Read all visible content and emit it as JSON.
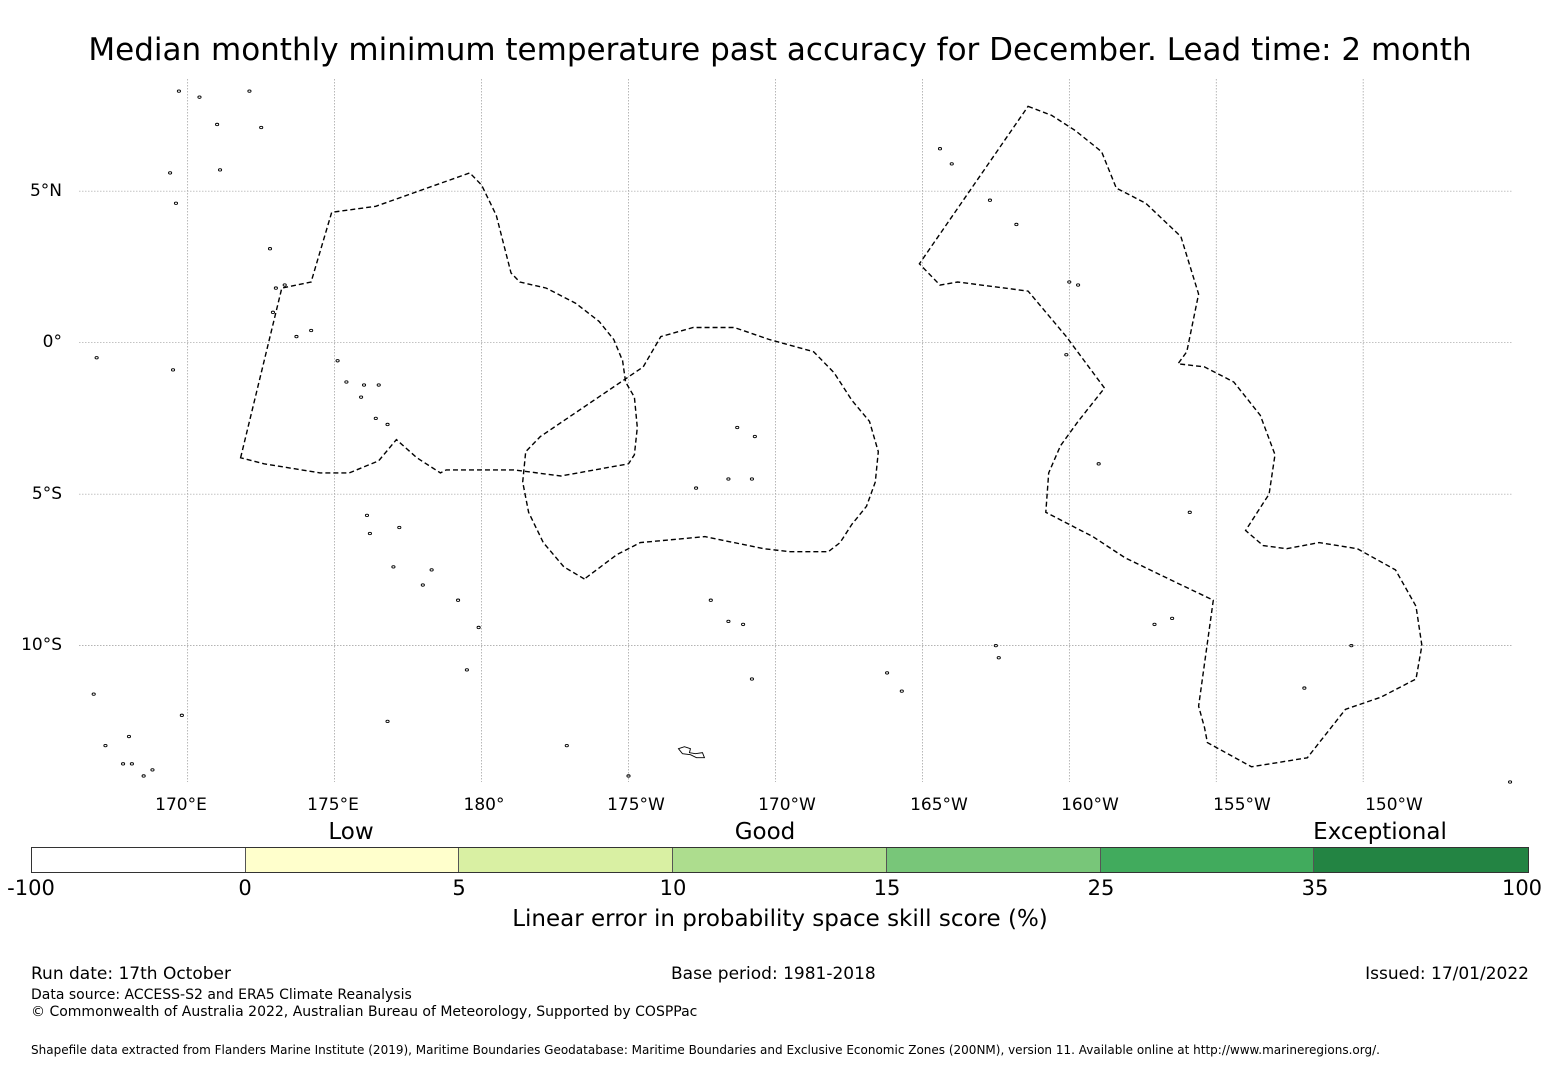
{
  "title": "Median monthly minimum temperature past accuracy for December. Lead time: 2 month",
  "map": {
    "lat_labels": [
      "5°N",
      "0°",
      "5°S",
      "10°S"
    ],
    "lon_labels": [
      "170°E",
      "175°E",
      "180°",
      "175°W",
      "170°W",
      "165°W",
      "160°W",
      "155°W",
      "150°W"
    ],
    "lat_values": [
      5,
      0,
      -5,
      -10
    ],
    "lon_values": [
      170,
      175,
      180,
      185,
      190,
      195,
      200,
      205,
      210
    ],
    "lat_range": [
      -14.5,
      8.7
    ],
    "lon_range": [
      166.3,
      215.1
    ],
    "gridline_color": "#888888",
    "region_outline_style": "dashed",
    "regions": [
      {
        "name": "west-region",
        "points": [
          [
            171.8,
            -3.8
          ],
          [
            173.2,
            1.8
          ],
          [
            174.2,
            2.0
          ],
          [
            174.9,
            4.3
          ],
          [
            176.4,
            4.5
          ],
          [
            179.6,
            5.6
          ],
          [
            180.0,
            5.2
          ],
          [
            180.5,
            4.2
          ],
          [
            181.0,
            2.3
          ],
          [
            181.3,
            2.0
          ],
          [
            182.2,
            1.8
          ],
          [
            183.2,
            1.3
          ],
          [
            184.0,
            0.7
          ],
          [
            184.5,
            0.1
          ],
          [
            184.8,
            -0.6
          ],
          [
            184.9,
            -1.3
          ],
          [
            185.2,
            -1.8
          ],
          [
            185.3,
            -2.8
          ],
          [
            185.2,
            -3.7
          ],
          [
            185.0,
            -4.0
          ],
          [
            182.7,
            -4.4
          ],
          [
            181.1,
            -4.2
          ],
          [
            179.2,
            -4.2
          ],
          [
            178.8,
            -4.2
          ],
          [
            178.6,
            -4.3
          ],
          [
            177.8,
            -3.8
          ],
          [
            177.1,
            -3.2
          ],
          [
            176.5,
            -3.9
          ],
          [
            175.5,
            -4.3
          ],
          [
            174.5,
            -4.3
          ],
          [
            172.6,
            -4.0
          ]
        ]
      },
      {
        "name": "central-region",
        "points": [
          [
            183.5,
            -7.8
          ],
          [
            182.8,
            -7.4
          ],
          [
            182.1,
            -6.6
          ],
          [
            181.6,
            -5.6
          ],
          [
            181.4,
            -4.6
          ],
          [
            181.5,
            -3.6
          ],
          [
            182.0,
            -3.1
          ],
          [
            185.5,
            -0.8
          ],
          [
            186.1,
            0.2
          ],
          [
            187.2,
            0.5
          ],
          [
            188.6,
            0.5
          ],
          [
            189.8,
            0.1
          ],
          [
            191.3,
            -0.3
          ],
          [
            192.0,
            -1.0
          ],
          [
            192.6,
            -1.9
          ],
          [
            193.2,
            -2.6
          ],
          [
            193.5,
            -3.6
          ],
          [
            193.4,
            -4.6
          ],
          [
            193.1,
            -5.4
          ],
          [
            192.6,
            -6.0
          ],
          [
            192.2,
            -6.6
          ],
          [
            191.8,
            -6.9
          ],
          [
            190.5,
            -6.9
          ],
          [
            189.6,
            -6.8
          ],
          [
            187.6,
            -6.4
          ],
          [
            185.4,
            -6.6
          ],
          [
            184.6,
            -7.0
          ]
        ]
      },
      {
        "name": "east-region",
        "points": [
          [
            198.6,
            7.8
          ],
          [
            199.4,
            7.5
          ],
          [
            200.2,
            7.0
          ],
          [
            201.1,
            6.3
          ],
          [
            201.6,
            5.1
          ],
          [
            202.6,
            4.6
          ],
          [
            203.8,
            3.5
          ],
          [
            204.4,
            1.6
          ],
          [
            204.0,
            -0.3
          ],
          [
            203.7,
            -0.7
          ],
          [
            204.6,
            -0.8
          ],
          [
            205.6,
            -1.3
          ],
          [
            206.5,
            -2.4
          ],
          [
            207.0,
            -3.7
          ],
          [
            206.8,
            -5.0
          ],
          [
            206.4,
            -5.6
          ],
          [
            206.0,
            -6.2
          ],
          [
            206.6,
            -6.7
          ],
          [
            207.4,
            -6.8
          ],
          [
            208.5,
            -6.6
          ],
          [
            209.8,
            -6.8
          ],
          [
            211.1,
            -7.5
          ],
          [
            211.8,
            -8.7
          ],
          [
            212.0,
            -10.0
          ],
          [
            211.8,
            -11.1
          ],
          [
            210.6,
            -11.7
          ],
          [
            209.4,
            -12.1
          ],
          [
            208.1,
            -13.7
          ],
          [
            206.2,
            -14.0
          ],
          [
            204.7,
            -13.2
          ],
          [
            204.6,
            -12.7
          ],
          [
            204.4,
            -12.0
          ],
          [
            204.9,
            -8.5
          ],
          [
            203.6,
            -7.9
          ],
          [
            201.9,
            -7.1
          ],
          [
            200.8,
            -6.4
          ],
          [
            199.2,
            -5.6
          ],
          [
            199.3,
            -4.3
          ],
          [
            199.7,
            -3.4
          ],
          [
            200.3,
            -2.6
          ],
          [
            201.2,
            -1.5
          ],
          [
            199.9,
            0.2
          ],
          [
            198.6,
            1.7
          ],
          [
            196.2,
            2.0
          ],
          [
            195.6,
            1.9
          ],
          [
            194.9,
            2.6
          ]
        ]
      }
    ],
    "islands": [
      [
        169.7,
        8.3
      ],
      [
        170.4,
        8.1
      ],
      [
        171.0,
        7.2
      ],
      [
        172.1,
        8.3
      ],
      [
        172.5,
        7.1
      ],
      [
        171.1,
        5.7
      ],
      [
        169.4,
        5.6
      ],
      [
        169.6,
        4.6
      ],
      [
        172.8,
        3.1
      ],
      [
        173.0,
        1.8
      ],
      [
        173.3,
        1.9
      ],
      [
        172.9,
        1.0
      ],
      [
        173.7,
        0.2
      ],
      [
        174.2,
        0.4
      ],
      [
        175.1,
        -0.6
      ],
      [
        175.4,
        -1.3
      ],
      [
        176.0,
        -1.4
      ],
      [
        176.5,
        -1.4
      ],
      [
        175.9,
        -1.8
      ],
      [
        176.8,
        -2.7
      ],
      [
        176.4,
        -2.5
      ],
      [
        166.9,
        -0.5
      ],
      [
        169.5,
        -0.9
      ],
      [
        176.1,
        -5.7
      ],
      [
        177.2,
        -6.1
      ],
      [
        176.2,
        -6.3
      ],
      [
        177.0,
        -7.4
      ],
      [
        178.3,
        -7.5
      ],
      [
        178.0,
        -8.0
      ],
      [
        179.2,
        -8.5
      ],
      [
        179.9,
        -9.4
      ],
      [
        179.5,
        -10.8
      ],
      [
        176.8,
        -12.5
      ],
      [
        169.8,
        -12.3
      ],
      [
        166.8,
        -11.6
      ],
      [
        167.2,
        -13.3
      ],
      [
        168.0,
        -13.0
      ],
      [
        167.8,
        -13.9
      ],
      [
        168.8,
        -14.1
      ],
      [
        168.5,
        -14.3
      ],
      [
        182.9,
        -13.3
      ],
      [
        185.0,
        -14.3
      ],
      [
        188.7,
        -2.8
      ],
      [
        189.3,
        -3.1
      ],
      [
        188.4,
        -4.5
      ],
      [
        189.2,
        -4.5
      ],
      [
        187.3,
        -4.8
      ],
      [
        187.8,
        -8.5
      ],
      [
        188.4,
        -9.2
      ],
      [
        188.9,
        -9.3
      ],
      [
        189.2,
        -11.1
      ],
      [
        193.8,
        -10.9
      ],
      [
        194.3,
        -11.5
      ],
      [
        195.6,
        6.4
      ],
      [
        196.0,
        5.9
      ],
      [
        197.3,
        4.7
      ],
      [
        198.2,
        3.9
      ],
      [
        200.0,
        2.0
      ],
      [
        200.3,
        1.9
      ],
      [
        199.9,
        -0.4
      ],
      [
        201.0,
        -4.0
      ],
      [
        204.1,
        -5.6
      ],
      [
        203.5,
        -9.1
      ],
      [
        202.9,
        -9.3
      ],
      [
        197.5,
        -10.0
      ],
      [
        197.6,
        -10.4
      ],
      [
        208.0,
        -11.4
      ],
      [
        209.6,
        -10.0
      ],
      [
        215.0,
        -14.5
      ],
      [
        168.1,
        -13.9
      ]
    ],
    "samoa": "Samoa"
  },
  "categories": [
    "Low",
    "Good",
    "Exceptional"
  ],
  "colorbar": {
    "ticks": [
      "-100",
      "0",
      "5",
      "10",
      "15",
      "25",
      "35",
      "100"
    ],
    "colors": [
      "#ffffff",
      "#ffffcc",
      "#d9f0a3",
      "#addd8e",
      "#78c679",
      "#41ab5d",
      "#238443"
    ],
    "label": "Linear error in probability space skill score (%)"
  },
  "footer": {
    "run_date": "Run date: 17th October",
    "base_period": "Base period: 1981-2018",
    "issued": "Issued: 17/01/2022",
    "data_source": "Data source: ACCESS-S2 and ERA5 Climate Reanalysis",
    "copyright": "© Commonwealth of Australia 2022, Australian Bureau of Meteorology, Supported by COSPPac",
    "shapefile": "Shapefile data extracted from Flanders Marine Institute (2019), Maritime Boundaries Geodatabase: Maritime Boundaries and Exclusive Economic Zones (200NM), version 11. Available online at http://www.marineregions.org/."
  }
}
